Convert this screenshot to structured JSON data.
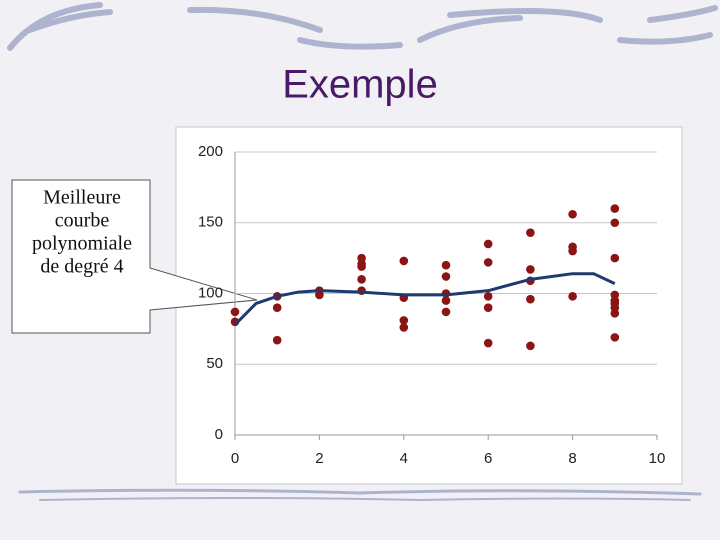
{
  "chart_data": {
    "type": "scatter",
    "title": "Exemple",
    "annotation": [
      "Meilleure",
      "courbe",
      "polynomiale",
      "de degré 4"
    ],
    "xlim": [
      0,
      10
    ],
    "xticks": [
      0,
      2,
      4,
      6,
      8,
      10
    ],
    "ylim": [
      0,
      200
    ],
    "yticks": [
      0,
      50,
      100,
      150,
      200
    ],
    "grid": true,
    "series": [
      {
        "type": "scatter",
        "color": "#8b1414",
        "x": [
          0,
          0,
          1,
          1,
          1,
          2,
          2,
          3,
          3,
          3,
          3,
          3,
          4,
          4,
          4,
          4,
          5,
          5,
          5,
          5,
          5,
          6,
          6,
          6,
          6,
          6,
          7,
          7,
          7,
          7,
          7,
          8,
          8,
          8,
          8,
          9,
          9,
          9,
          9,
          9,
          9,
          9,
          9,
          9
        ],
        "values": [
          87,
          80,
          98,
          90,
          67,
          102,
          99,
          125,
          121,
          119,
          110,
          102,
          123,
          97,
          81,
          76,
          120,
          112,
          100,
          95,
          87,
          135,
          122,
          98,
          90,
          65,
          143,
          117,
          109,
          96,
          63,
          156,
          133,
          130,
          98,
          160,
          150,
          125,
          99,
          95,
          93,
          90,
          86,
          69
        ]
      },
      {
        "type": "line",
        "color": "#1f3a6e",
        "x": [
          0,
          0.5,
          1,
          1.5,
          2,
          3,
          4,
          5,
          6,
          7,
          8,
          8.5,
          9
        ],
        "values": [
          78,
          93,
          98,
          101,
          102,
          101,
          99,
          99,
          102,
          110,
          114,
          114,
          107
        ]
      }
    ]
  }
}
